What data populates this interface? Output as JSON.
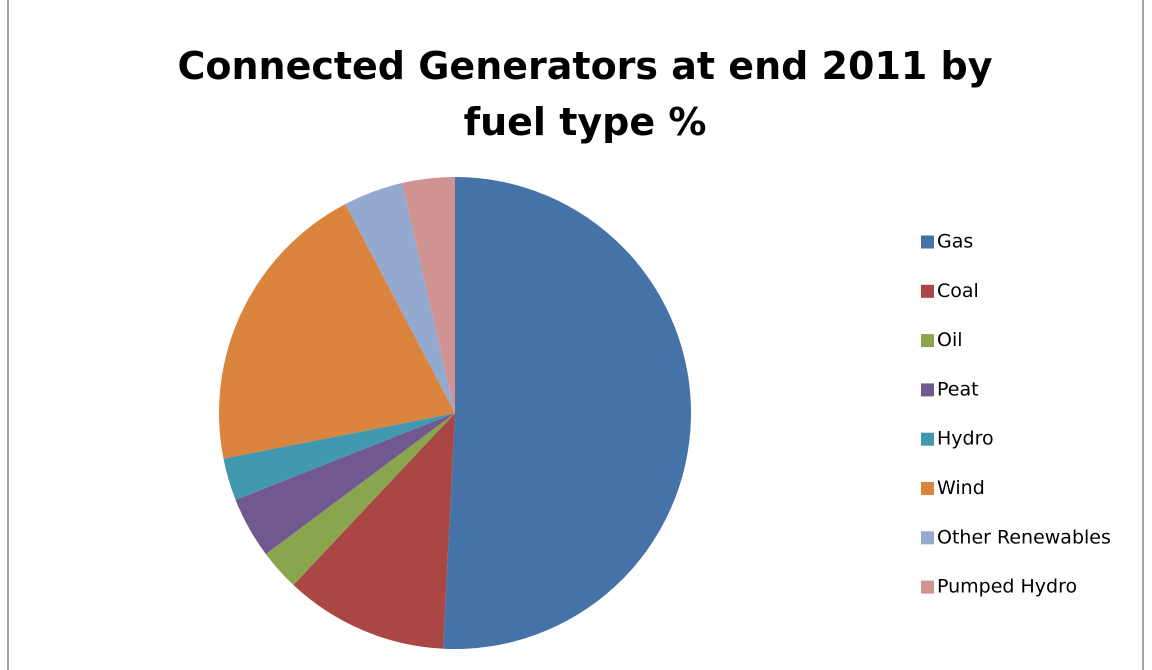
{
  "chart_data": {
    "type": "pie",
    "title": "Connected Generators at end 2011 by fuel type %",
    "categories": [
      "Gas",
      "Coal",
      "Oil",
      "Peat",
      "Hydro",
      "Wind",
      "Other Renewables",
      "Pumped Hydro"
    ],
    "values": [
      50.8,
      11.2,
      2.8,
      4.2,
      2.9,
      20.4,
      4.1,
      3.6
    ],
    "colors": [
      "#4572a7",
      "#aa4643",
      "#89a54e",
      "#71588f",
      "#4198af",
      "#db843d",
      "#93a9cf",
      "#d19392"
    ],
    "legend": "right"
  }
}
